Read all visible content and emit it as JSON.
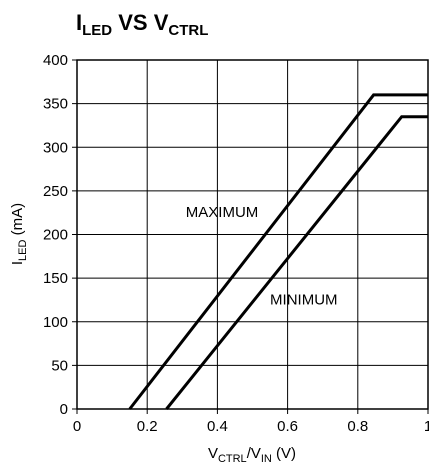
{
  "title": {
    "main_a": "I",
    "sub_a": "LED",
    "middle": " VS V",
    "sub_b": "CTRL"
  },
  "chart_data": {
    "type": "line",
    "xlabel": {
      "main_a": "V",
      "sub_a": "CTRL",
      "middle": "/V",
      "sub_b": "IN",
      "tail": " (V)"
    },
    "ylabel": {
      "main_a": "I",
      "sub_a": "LED",
      "tail": " (mA)"
    },
    "xlim": [
      0,
      1
    ],
    "ylim": [
      0,
      400
    ],
    "x_ticks": [
      0,
      0.2,
      0.4,
      0.6,
      0.8,
      1
    ],
    "x_tick_labels": [
      "0",
      "0.2",
      "0.4",
      "0.6",
      "0.8",
      "1"
    ],
    "y_ticks": [
      0,
      50,
      100,
      150,
      200,
      250,
      300,
      350,
      400
    ],
    "y_tick_labels": [
      "0",
      "50",
      "100",
      "150",
      "200",
      "250",
      "300",
      "350",
      "400"
    ],
    "grid": true,
    "series": [
      {
        "name": "MAXIMUM",
        "x": [
          0.15,
          0.845,
          1.0
        ],
        "y": [
          0,
          360,
          360
        ]
      },
      {
        "name": "MINIMUM",
        "x": [
          0.255,
          0.925,
          1.0
        ],
        "y": [
          0,
          335,
          335
        ]
      }
    ],
    "annotations": [
      {
        "text": "MAXIMUM",
        "x": 0.31,
        "y": 220
      },
      {
        "text": "MINIMUM",
        "x": 0.55,
        "y": 120
      }
    ]
  }
}
